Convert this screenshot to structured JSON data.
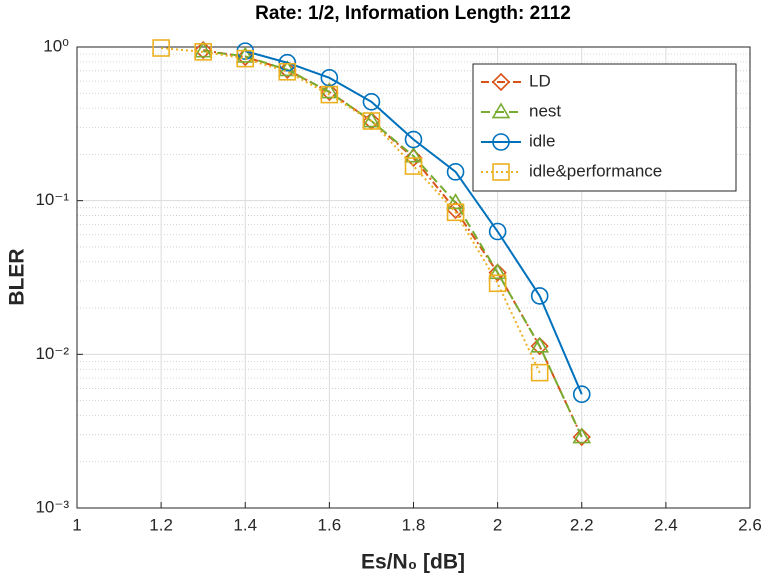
{
  "chart_data": {
    "type": "line",
    "title": "Rate: 1/2, Information Length: 2112",
    "x_label": "Es/N₀ [dB]",
    "y_label": "BLER",
    "log_y": true,
    "grid": true,
    "legend": "top-right",
    "x": [
      1.2,
      1.3,
      1.4,
      1.5,
      1.6,
      1.7,
      1.8,
      1.9,
      2.0,
      2.1,
      2.2
    ],
    "xlim": [
      1,
      2.6
    ],
    "xticks": [
      1,
      1.2,
      1.4,
      1.6,
      1.8,
      2,
      2.2,
      2.4,
      2.6
    ],
    "ylim": [
      0.001,
      1
    ],
    "yticks": [
      {
        "value": 0.001,
        "label": "10⁻³"
      },
      {
        "value": 0.01,
        "label": "10⁻²"
      },
      {
        "value": 0.1,
        "label": "10⁻¹"
      },
      {
        "value": 1,
        "label": "10⁰"
      }
    ],
    "series": [
      {
        "name": "LD",
        "color": "#d95319",
        "marker": "diamond",
        "dash": "dashdot",
        "values": [
          null,
          0.955,
          0.86,
          0.71,
          0.51,
          0.33,
          0.19,
          0.087,
          0.034,
          0.0113,
          0.0029
        ]
      },
      {
        "name": "nest",
        "color": "#77ac30",
        "marker": "triangle",
        "dash": "dashed",
        "values": [
          null,
          0.94,
          0.87,
          0.71,
          0.51,
          0.33,
          0.195,
          0.097,
          0.034,
          0.0113,
          0.0029
        ]
      },
      {
        "name": "idle",
        "color": "#0072bd",
        "marker": "circle",
        "dash": "solid",
        "values": [
          null,
          null,
          0.94,
          0.79,
          0.63,
          0.44,
          0.25,
          0.154,
          0.063,
          0.024,
          0.0055
        ]
      },
      {
        "name": "idle&performance",
        "color": "#edb120",
        "marker": "square",
        "dash": "dotted",
        "values": [
          0.985,
          0.93,
          0.84,
          0.69,
          0.49,
          0.33,
          0.168,
          0.084,
          0.029,
          0.0076,
          null
        ]
      }
    ]
  }
}
